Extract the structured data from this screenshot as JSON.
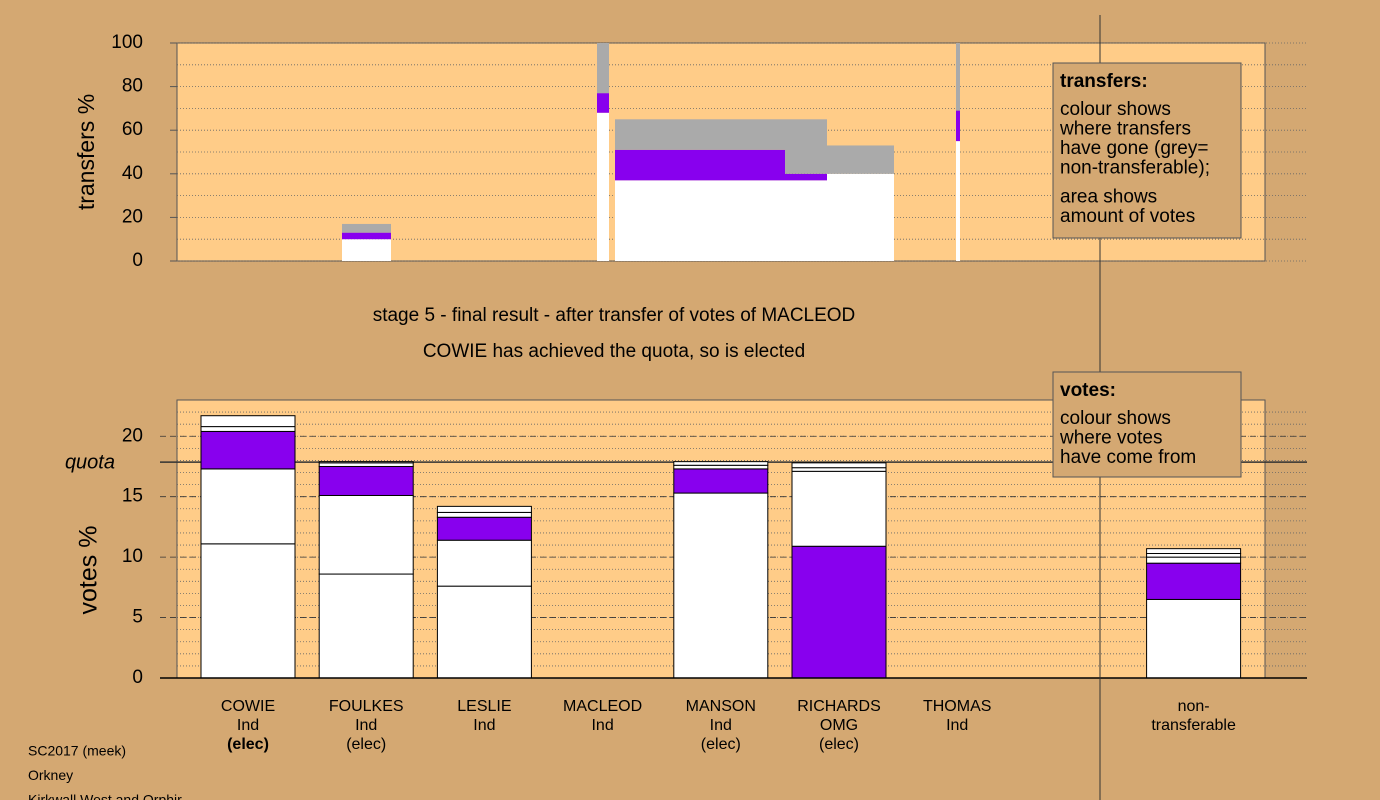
{
  "chart_data": [
    {
      "type": "stacked-bar",
      "ylabel": "transfers %",
      "ylim": [
        0,
        100
      ],
      "yticks": [
        0,
        20,
        40,
        60,
        80,
        100
      ],
      "series": [
        {
          "color": "#ffffff",
          "values": [
            10,
            68,
            37,
            37,
            40,
            55
          ]
        },
        {
          "color": "#8800ee",
          "values": [
            3,
            9,
            14,
            3,
            0,
            14
          ]
        },
        {
          "color": "#aaaaaa",
          "values": [
            4,
            23,
            14,
            25,
            13,
            31
          ]
        }
      ],
      "legend": {
        "title": "transfers:",
        "lines": [
          "colour shows",
          "where transfers",
          "have gone (grey=",
          "non-transferable);",
          "area shows",
          "amount of votes"
        ]
      }
    },
    {
      "type": "stacked-bar",
      "title": "stage 5 - final result - after transfer of votes of MACLEOD",
      "subtitle": "COWIE has achieved the quota, so is elected",
      "ylabel": "votes %",
      "ylim": [
        0,
        23
      ],
      "yticks": [
        0,
        5,
        10,
        15,
        20
      ],
      "quota": {
        "label": "quota",
        "value": 17.86
      },
      "categories": [
        [
          "COWIE",
          "Ind",
          "(elec)"
        ],
        [
          "FOULKES",
          "Ind",
          "(elec)"
        ],
        [
          "LESLIE",
          "Ind"
        ],
        [
          "MACLEOD",
          "Ind"
        ],
        [
          "MANSON",
          "Ind",
          "(elec)"
        ],
        [
          "RICHARDS",
          "OMG",
          "(elec)"
        ],
        [
          "THOMAS",
          "Ind"
        ],
        [
          "non-",
          "transferable"
        ]
      ],
      "bars": [
        {
          "values": [
            11.1,
            6.2,
            3.1,
            0.4,
            0.9
          ],
          "colors": [
            "#ffffff",
            "#ffffff",
            "#8800ee",
            "#ffffff",
            "#ffffff"
          ]
        },
        {
          "values": [
            8.6,
            6.5,
            2.4,
            0.3,
            0.1
          ],
          "colors": [
            "#ffffff",
            "#ffffff",
            "#8800ee",
            "#ffffff",
            "#ffffff"
          ]
        },
        {
          "values": [
            7.6,
            3.8,
            1.9,
            0.4,
            0.5
          ],
          "colors": [
            "#ffffff",
            "#ffffff",
            "#8800ee",
            "#ffffff",
            "#ffffff"
          ]
        },
        {
          "values": [
            0
          ],
          "colors": [
            "#ffffff"
          ]
        },
        {
          "values": [
            15.3,
            2.0,
            0.3,
            0.3
          ],
          "colors": [
            "#ffffff",
            "#8800ee",
            "#ffffff",
            "#ffffff"
          ]
        },
        {
          "values": [
            10.9,
            6.2,
            0.3,
            0.4
          ],
          "colors": [
            "#8800ee",
            "#ffffff",
            "#ffffff",
            "#ffffff"
          ]
        },
        {
          "values": [
            0
          ],
          "colors": [
            "#ffffff"
          ]
        },
        {
          "values": [
            6.5,
            3.0,
            0.5,
            0.3,
            0.4
          ],
          "colors": [
            "#ffffff",
            "#8800ee",
            "#ffffff",
            "#ffffff",
            "#ffffff"
          ]
        }
      ],
      "legend": {
        "title": "votes:",
        "lines": [
          "colour shows",
          "where votes",
          "have come from"
        ]
      }
    }
  ],
  "footer": [
    "SC2017 (meek)",
    "Orkney",
    "Kirkwall West and Orphir"
  ]
}
